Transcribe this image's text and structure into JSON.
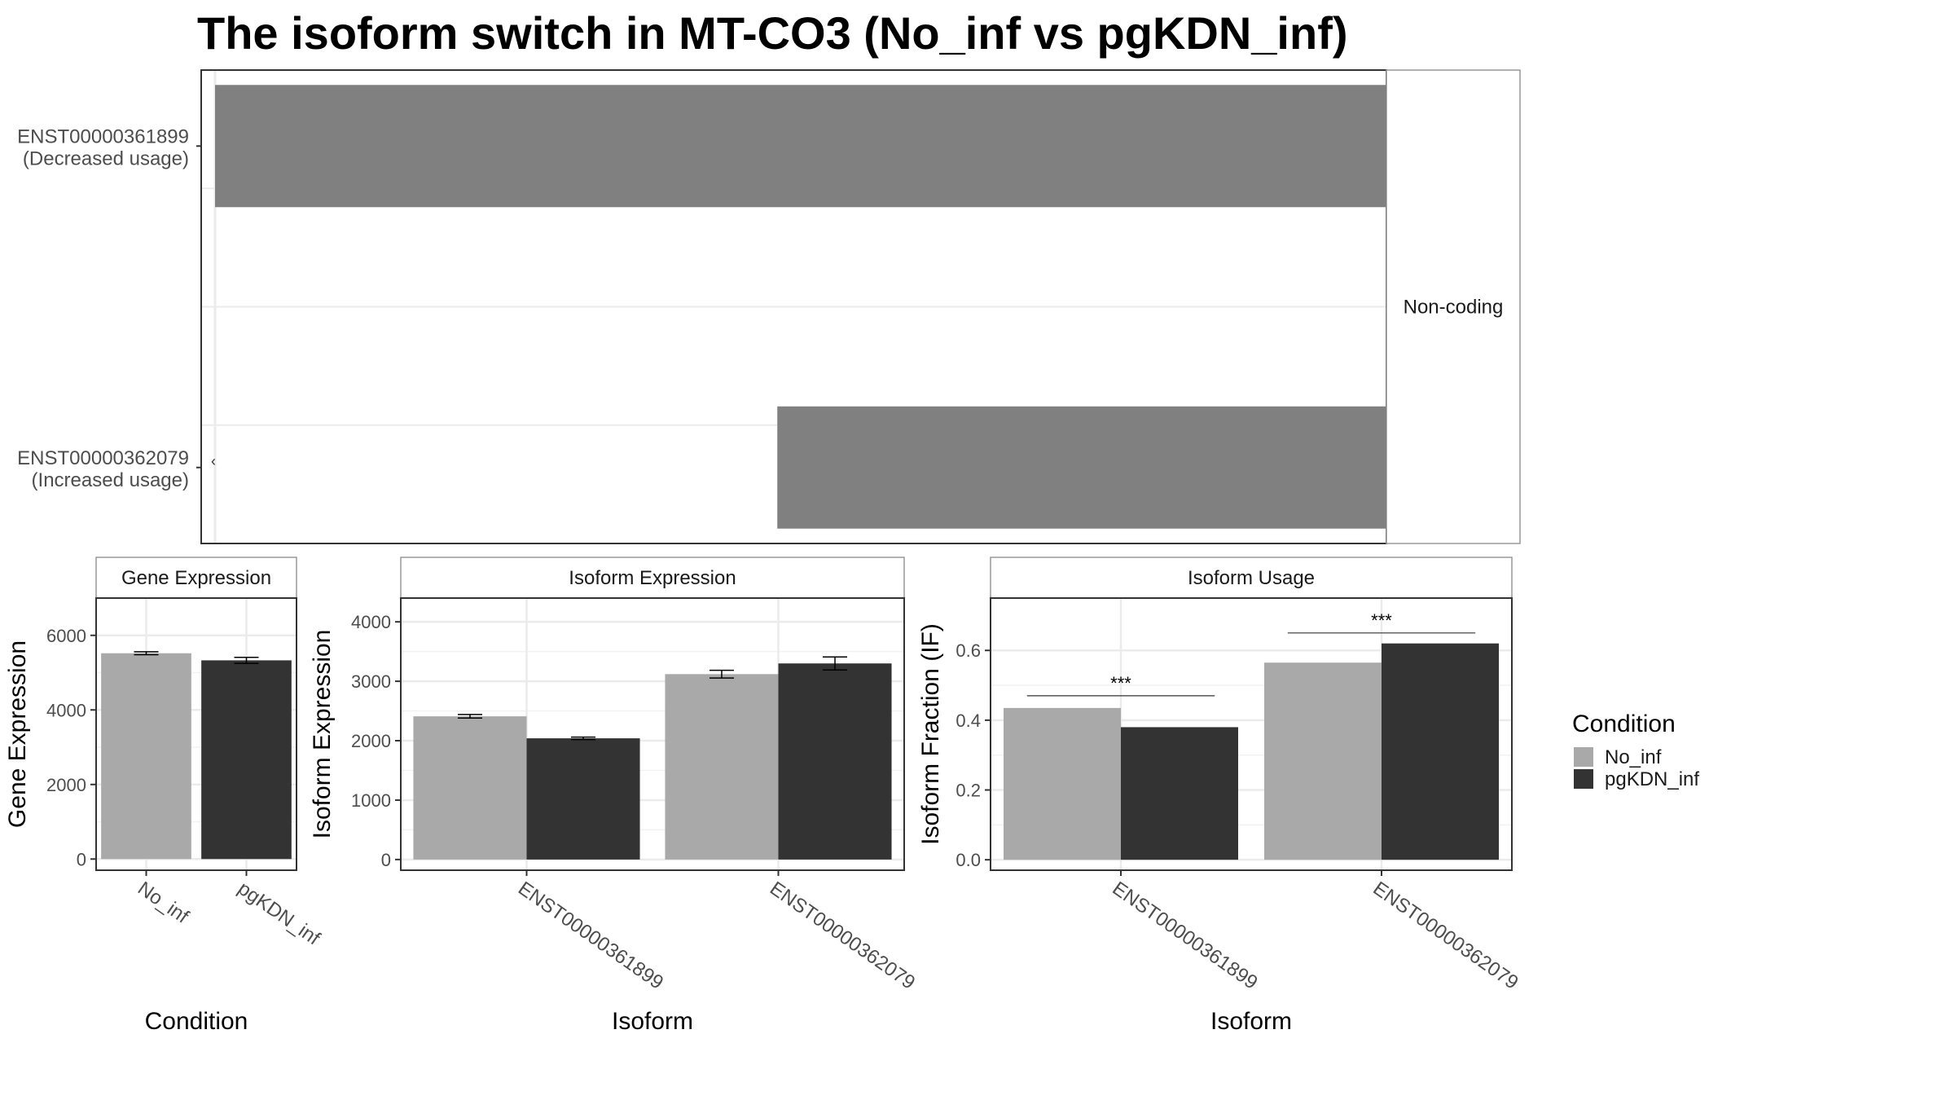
{
  "title": "The isoform switch in MT-CO3 (No_inf vs pgKDN_inf)",
  "colors": {
    "no_inf": "#a9a9a9",
    "pgkdn_inf": "#333333",
    "structure": "#808080",
    "grid": "#ebebeb",
    "border": "#333333"
  },
  "chart_data": [
    {
      "type": "bar",
      "name": "isoform-structure",
      "categories": [
        "ENST00000361899\n(Decreased usage)",
        "ENST00000362079\n(Increased usage)"
      ],
      "bars": [
        {
          "category": "ENST00000361899",
          "start": 0,
          "end": 1
        },
        {
          "category": "ENST00000362079",
          "start": 0.48,
          "end": 1
        }
      ],
      "strip_label": "Non-coding",
      "xlim": [
        0,
        1
      ]
    },
    {
      "type": "bar",
      "name": "gene-expression",
      "title": "Gene Expression",
      "xlabel": "Condition",
      "ylabel": "Gene Expression",
      "categories": [
        "No_inf",
        "pgKDN_inf"
      ],
      "values": [
        5520,
        5330
      ],
      "errors": [
        40,
        80
      ],
      "ylim": [
        -300,
        7000
      ],
      "yticks": [
        0,
        2000,
        4000,
        6000
      ]
    },
    {
      "type": "bar",
      "name": "isoform-expression",
      "title": "Isoform Expression",
      "xlabel": "Isoform",
      "ylabel": "Isoform Expression",
      "categories": [
        "ENST00000361899",
        "ENST00000362079"
      ],
      "series": [
        {
          "name": "No_inf",
          "values": [
            2410,
            3120
          ],
          "errors": [
            30,
            65
          ]
        },
        {
          "name": "pgKDN_inf",
          "values": [
            2040,
            3300
          ],
          "errors": [
            20,
            110
          ]
        }
      ],
      "ylim": [
        -180,
        4400
      ],
      "yticks": [
        0,
        1000,
        2000,
        3000,
        4000
      ]
    },
    {
      "type": "bar",
      "name": "isoform-usage",
      "title": "Isoform Usage",
      "xlabel": "Isoform",
      "ylabel": "Isoform Fraction (IF)",
      "categories": [
        "ENST00000361899",
        "ENST00000362079"
      ],
      "series": [
        {
          "name": "No_inf",
          "values": [
            0.435,
            0.565
          ]
        },
        {
          "name": "pgKDN_inf",
          "values": [
            0.38,
            0.62
          ]
        }
      ],
      "significance": [
        {
          "label": "***",
          "y": 0.47
        },
        {
          "label": "***",
          "y": 0.65
        }
      ],
      "ylim": [
        -0.03,
        0.75
      ],
      "yticks": [
        0.0,
        0.2,
        0.4,
        0.6
      ],
      "ytick_labels": [
        "0.0",
        "0.2",
        "0.4",
        "0.6"
      ]
    }
  ],
  "legend": {
    "title": "Condition",
    "entries": [
      {
        "label": "No_inf",
        "color": "#a9a9a9"
      },
      {
        "label": "pgKDN_inf",
        "color": "#333333"
      }
    ],
    "position": "right"
  }
}
